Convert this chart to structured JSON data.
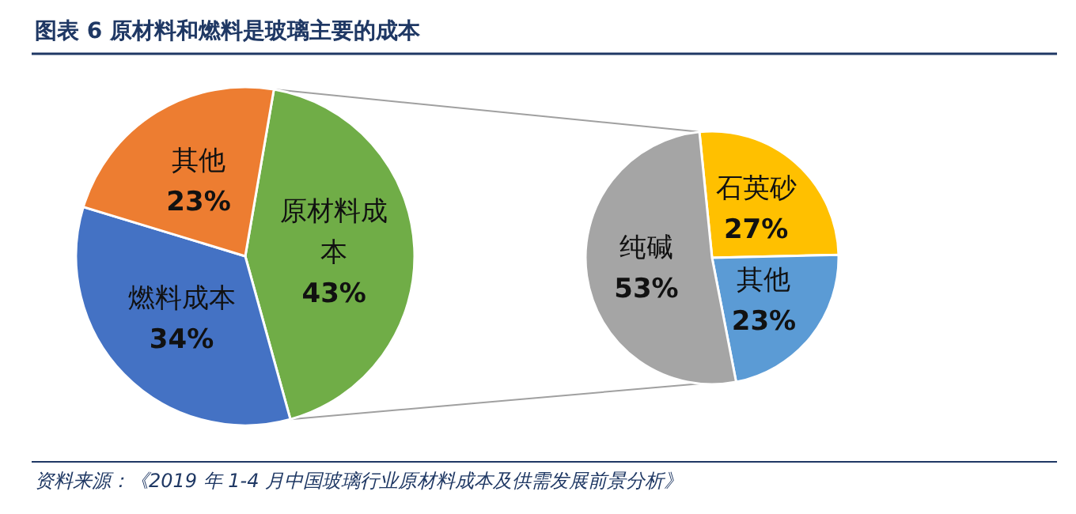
{
  "chart_data": [
    {
      "type": "pie",
      "title": "图表 6   原材料和燃料是玻璃主要的成本",
      "categories": [
        "原材料成本",
        "燃料成本",
        "其他"
      ],
      "values": [
        43,
        34,
        23
      ],
      "colors": [
        "#70ad47",
        "#4472c4",
        "#ed7d31"
      ],
      "value_labels": [
        "43%",
        "34%",
        "23%"
      ],
      "annotations": [
        "资料来源：《2019 年 1-4 月中国玻璃行业原材料成本及供需发展前景分析》"
      ]
    },
    {
      "type": "pie",
      "categories": [
        "石英砂",
        "其他",
        "纯碱"
      ],
      "values": [
        27,
        23,
        53
      ],
      "colors": [
        "#ffc000",
        "#5b9bd5",
        "#a5a5a5"
      ],
      "value_labels": [
        "27%",
        "23%",
        "53%"
      ]
    }
  ]
}
